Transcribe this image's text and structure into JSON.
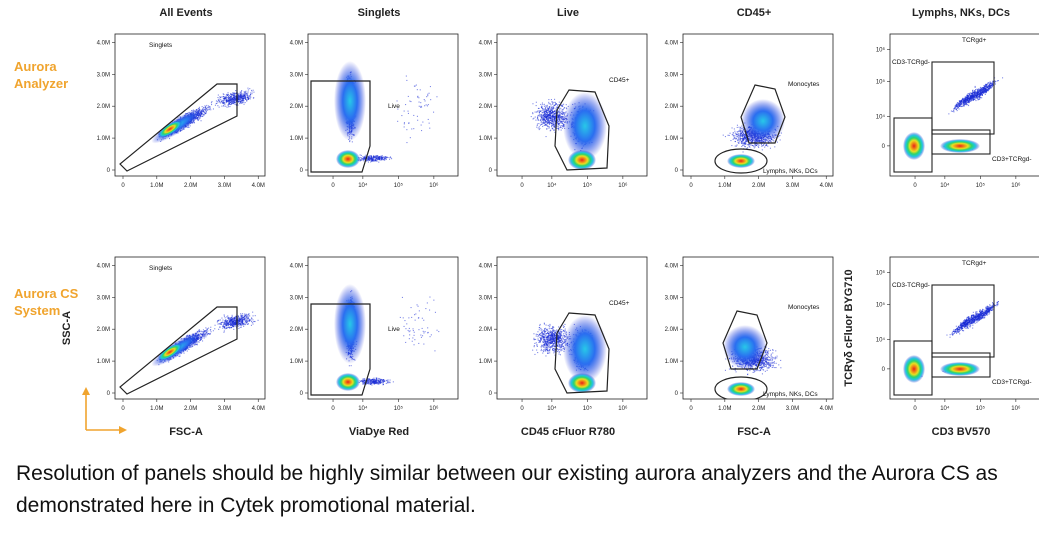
{
  "row_labels": [
    "Aurora\nAnalyzer",
    "Aurora CS\nSystem"
  ],
  "caption": "Resolution of panels should be highly similar between our existing aurora analyzers and the Aurora CS as demonstrated here in Cytek promotional material.",
  "colors": {
    "accent": "#f0a42e",
    "density_low": "#1a2bd6",
    "density_high": "#e8201a"
  },
  "chart_data": [
    {
      "type": "scatter",
      "title": "All Events",
      "xlabel": "FSC-A",
      "ylabel": "SSC-A",
      "x_ticks": [
        "0",
        "1.0M",
        "2.0M",
        "3.0M",
        "4.0M"
      ],
      "y_ticks": [
        "0",
        "1.0M",
        "2.0M",
        "3.0M",
        "4.0M"
      ],
      "xlim": [
        0,
        4.2
      ],
      "ylim": [
        0,
        4.2
      ],
      "gates": [
        {
          "name": "Singlets"
        }
      ]
    },
    {
      "type": "scatter",
      "title": "Singlets",
      "xlabel": "ViaDye Red",
      "ylabel": "",
      "x_ticks": [
        "0",
        "10⁴",
        "10⁵",
        "10⁶"
      ],
      "y_ticks": [
        "0",
        "1.0M",
        "2.0M",
        "3.0M",
        "4.0M"
      ],
      "gates": [
        {
          "name": "Live"
        }
      ]
    },
    {
      "type": "scatter",
      "title": "Live",
      "xlabel": "CD45 cFluor R780",
      "ylabel": "",
      "x_ticks": [
        "0",
        "10⁴",
        "10⁵",
        "10⁶"
      ],
      "y_ticks": [
        "0",
        "1.0M",
        "2.0M",
        "3.0M",
        "4.0M"
      ],
      "gates": [
        {
          "name": "CD45+"
        }
      ]
    },
    {
      "type": "scatter",
      "title": "CD45+",
      "xlabel": "FSC-A",
      "ylabel": "",
      "x_ticks": [
        "0",
        "1.0M",
        "2.0M",
        "3.0M",
        "4.0M"
      ],
      "y_ticks": [
        "0",
        "1.0M",
        "2.0M",
        "3.0M",
        "4.0M"
      ],
      "gates": [
        {
          "name": "Monocytes"
        },
        {
          "name": "Lymphs, NKs, DCs"
        }
      ]
    },
    {
      "type": "scatter",
      "title": "Lymphs, NKs, DCs",
      "xlabel": "CD3 BV570",
      "ylabel": "TCRγδ cFluor BYG710",
      "x_ticks": [
        "0",
        "10⁴",
        "10⁵",
        "10⁶"
      ],
      "y_ticks": [
        "0",
        "10⁴",
        "10⁵",
        "10⁶"
      ],
      "gates": [
        {
          "name": "TCRgd+"
        },
        {
          "name": "CD3-TCRgd-"
        },
        {
          "name": "CD3+TCRgd-"
        }
      ]
    }
  ]
}
